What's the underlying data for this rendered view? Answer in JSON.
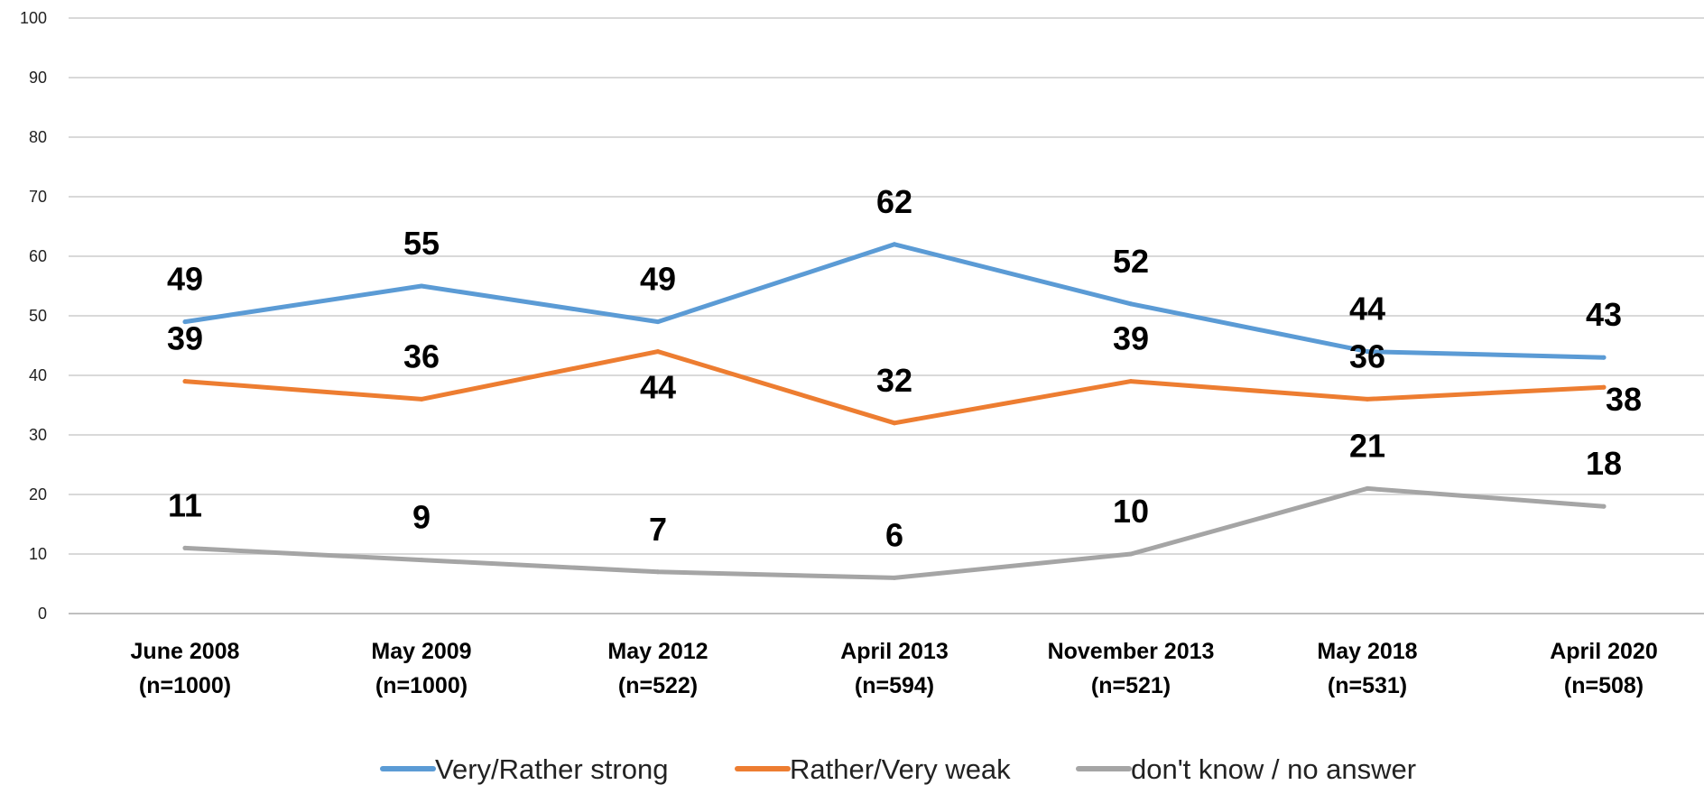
{
  "chart_data": {
    "type": "line",
    "categories": [
      [
        "June 2008",
        "(n=1000)"
      ],
      [
        "May 2009",
        "(n=1000)"
      ],
      [
        "May 2012",
        "(n=522)"
      ],
      [
        "April 2013",
        "(n=594)"
      ],
      [
        "November 2013",
        "(n=521)"
      ],
      [
        "May 2018",
        "(n=531)"
      ],
      [
        "April 2020",
        "(n=508)"
      ]
    ],
    "ylim": [
      0,
      100
    ],
    "yticks": [
      0,
      10,
      20,
      30,
      40,
      50,
      60,
      70,
      80,
      90,
      100
    ],
    "grid": true,
    "legend_position": "bottom",
    "series": [
      {
        "name": "Very/Rather strong",
        "color": "#5B9BD5",
        "values": [
          49,
          55,
          49,
          62,
          52,
          44,
          43
        ]
      },
      {
        "name": "Rather/Very weak",
        "color": "#ED7D31",
        "values": [
          39,
          36,
          44,
          32,
          39,
          36,
          38
        ]
      },
      {
        "name": "don't know / no answer",
        "color": "#A5A5A5",
        "values": [
          11,
          9,
          7,
          6,
          10,
          21,
          18
        ]
      }
    ]
  }
}
